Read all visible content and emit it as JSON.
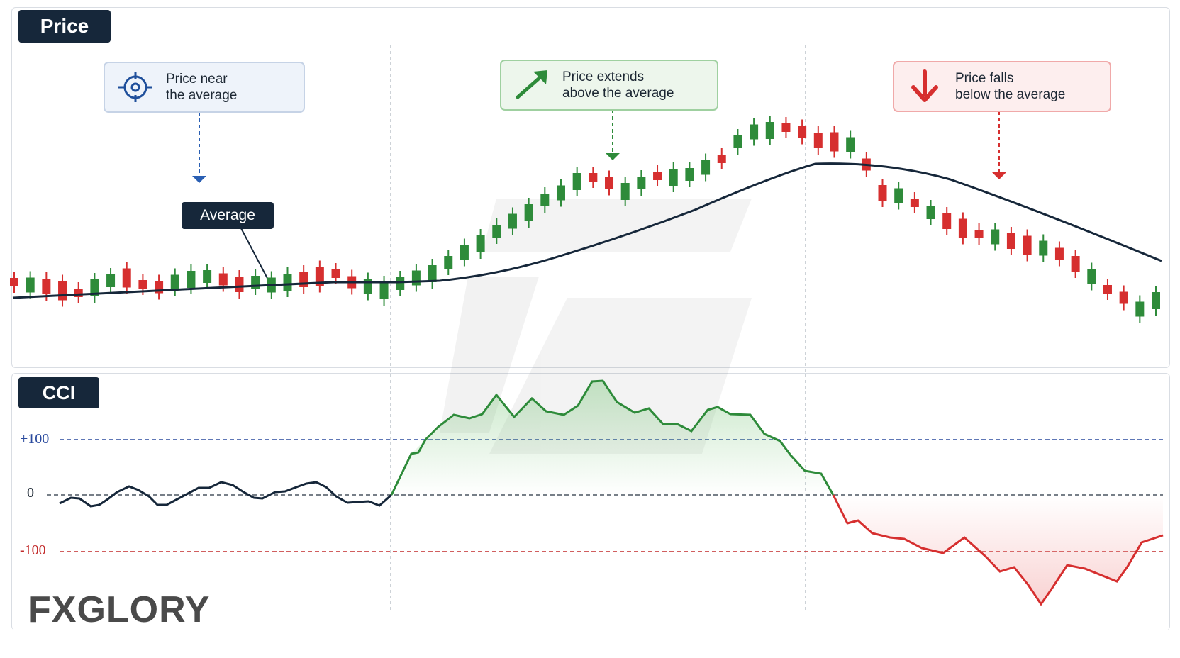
{
  "panels": {
    "price_title": "Price",
    "cci_title": "CCI"
  },
  "callouts": {
    "near": {
      "line1": "Price near",
      "line2": "the average",
      "icon": "target-icon"
    },
    "above": {
      "line1": "Price extends",
      "line2": "above the average",
      "icon": "arrow-up-right-icon"
    },
    "below": {
      "line1": "Price falls",
      "line2": "below the average",
      "icon": "arrow-down-icon"
    }
  },
  "average_label": "Average",
  "cci_levels": {
    "plus100": "+100",
    "zero": "0",
    "minus100": "-100"
  },
  "logo": "FXGLORY",
  "colors": {
    "up": "#2e8b3a",
    "down": "#d62f2f",
    "average": "#16273a",
    "plus100": "#2a4a9e",
    "minus100": "#c22a2a"
  },
  "chart_data": [
    {
      "type": "candlestick",
      "title": "Price",
      "phases": [
        "Price near the average",
        "Price extends above the average",
        "Price falls below the average"
      ],
      "candle_colors": [
        "down",
        "up",
        "down",
        "down",
        "down",
        "up",
        "up",
        "down",
        "down",
        "down",
        "up",
        "up",
        "up",
        "down",
        "down",
        "up",
        "up",
        "up",
        "down",
        "down",
        "down",
        "down",
        "up",
        "up",
        "up",
        "up",
        "up",
        "up",
        "up",
        "up",
        "up",
        "up",
        "up",
        "up",
        "up",
        "up",
        "down",
        "down",
        "up",
        "up",
        "down",
        "up",
        "up",
        "up",
        "down",
        "up",
        "up",
        "up",
        "down",
        "down",
        "down",
        "down",
        "up",
        "down",
        "down",
        "up",
        "down",
        "up",
        "down",
        "down",
        "down",
        "up",
        "down",
        "down",
        "up",
        "down",
        "down",
        "up",
        "down",
        "down",
        "up",
        "up"
      ],
      "series": [
        {
          "name": "Average",
          "type": "line"
        }
      ]
    },
    {
      "type": "line",
      "title": "CCI",
      "reference_lines": [
        100,
        0,
        -100
      ],
      "segments": [
        "neutral",
        "above +100",
        "below -100"
      ]
    }
  ]
}
